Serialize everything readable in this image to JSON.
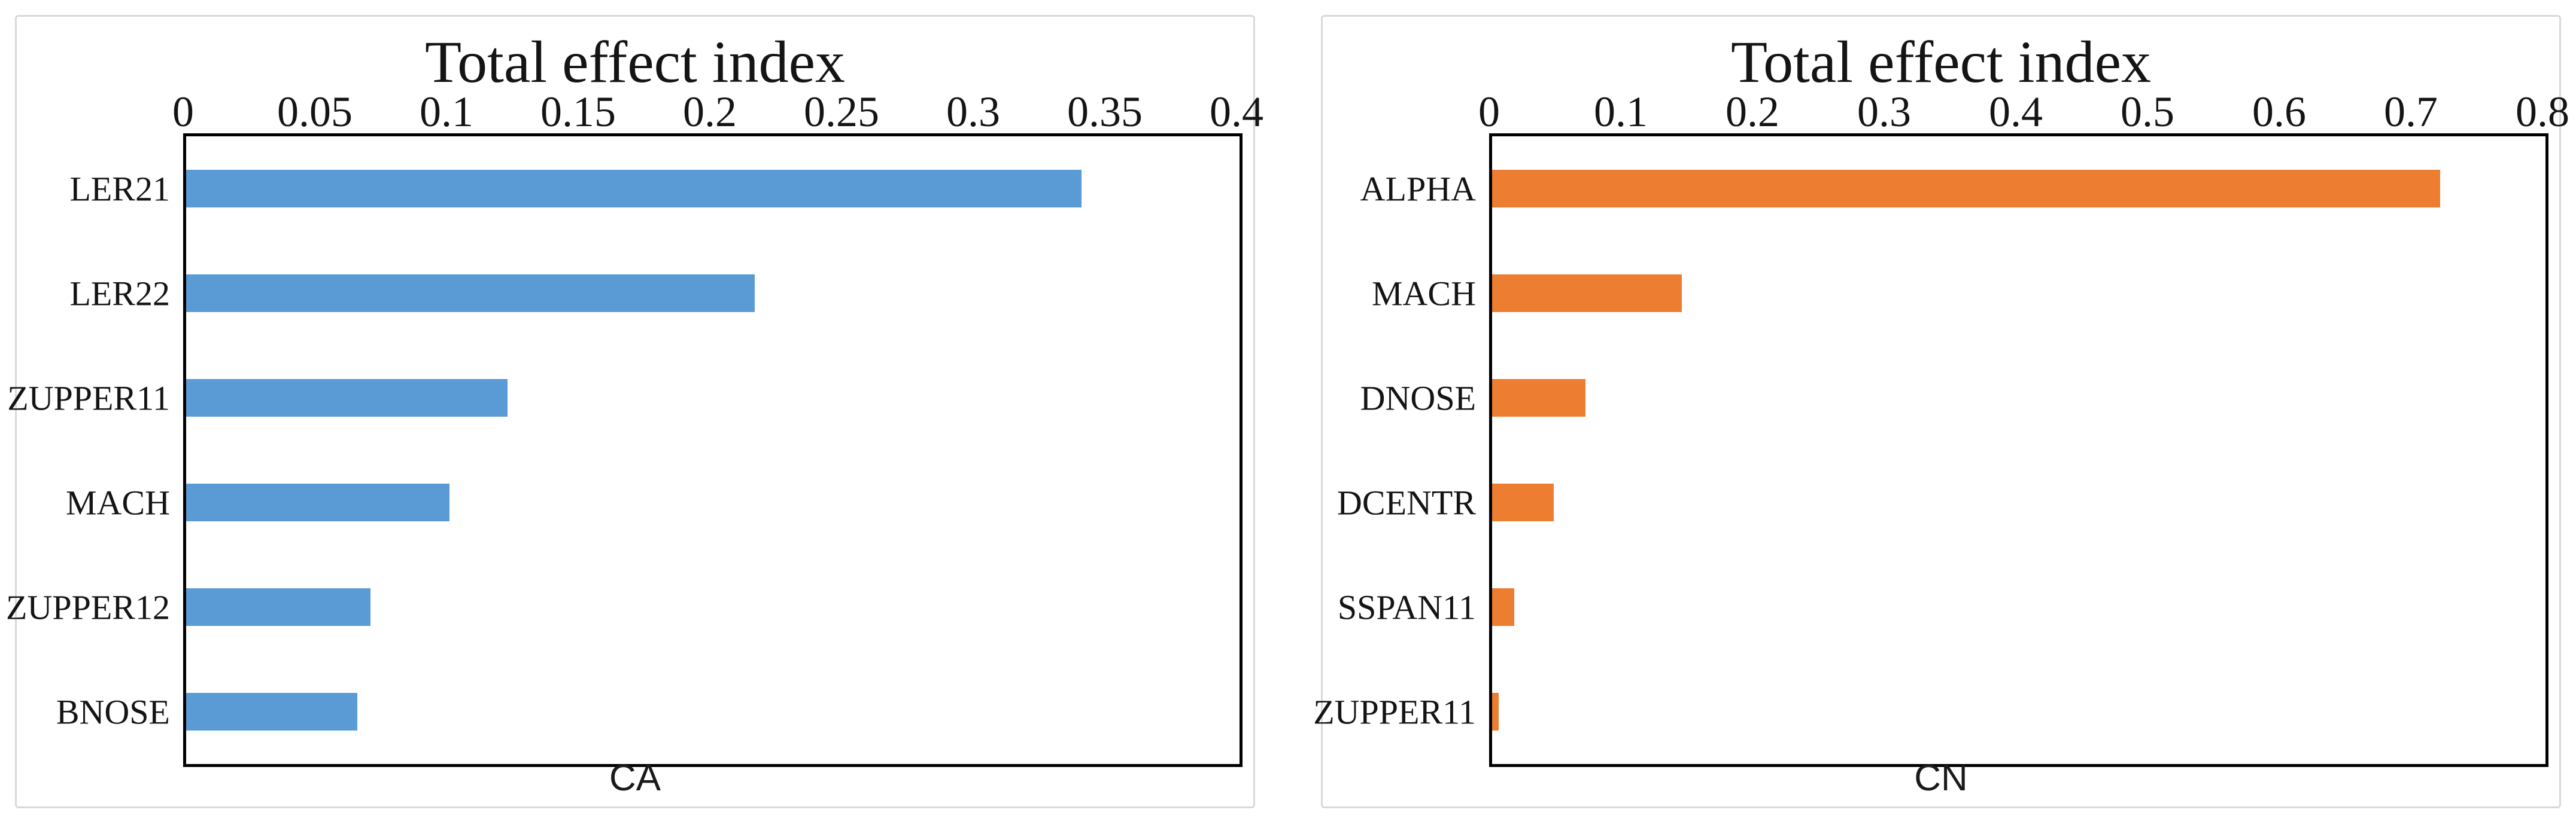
{
  "figure": {
    "background_color": "#ffffff",
    "panel_border_color": "#d9d9d9",
    "plot_border_color": "#000000",
    "text_color": "#141414"
  },
  "chart_data": [
    {
      "type": "bar",
      "orientation": "horizontal",
      "title": "Total effect index",
      "xlabel": "CA",
      "ylabel": "",
      "axis_title_position": "top",
      "grid": false,
      "legend": "none",
      "bar_color": "#5B9BD5",
      "xlim": [
        0,
        0.4
      ],
      "xticks": [
        0,
        0.05,
        0.1,
        0.15,
        0.2,
        0.25,
        0.3,
        0.35,
        0.4
      ],
      "tick_labels": [
        "0",
        "0.05",
        "0.1",
        "0.15",
        "0.2",
        "0.25",
        "0.3",
        "0.35",
        "0.4"
      ],
      "categories": [
        "LER21",
        "LER22",
        "ZUPPER11",
        "MACH",
        "ZUPPER12",
        "BNOSE"
      ],
      "values": [
        0.34,
        0.216,
        0.122,
        0.1,
        0.07,
        0.065
      ]
    },
    {
      "type": "bar",
      "orientation": "horizontal",
      "title": "Total effect index",
      "xlabel": "CN",
      "ylabel": "",
      "axis_title_position": "top",
      "grid": false,
      "legend": "none",
      "bar_color": "#ED7D31",
      "xlim": [
        0,
        0.8
      ],
      "xticks": [
        0,
        0.1,
        0.2,
        0.3,
        0.4,
        0.5,
        0.6,
        0.7,
        0.8
      ],
      "tick_labels": [
        "0",
        "0.1",
        "0.2",
        "0.3",
        "0.4",
        "0.5",
        "0.6",
        "0.7",
        "0.8"
      ],
      "categories": [
        "ALPHA",
        "MACH",
        "DNOSE",
        "DCENTR",
        "SSPAN11",
        "ZUPPER11"
      ],
      "values": [
        0.72,
        0.144,
        0.071,
        0.047,
        0.017,
        0.005
      ]
    }
  ]
}
